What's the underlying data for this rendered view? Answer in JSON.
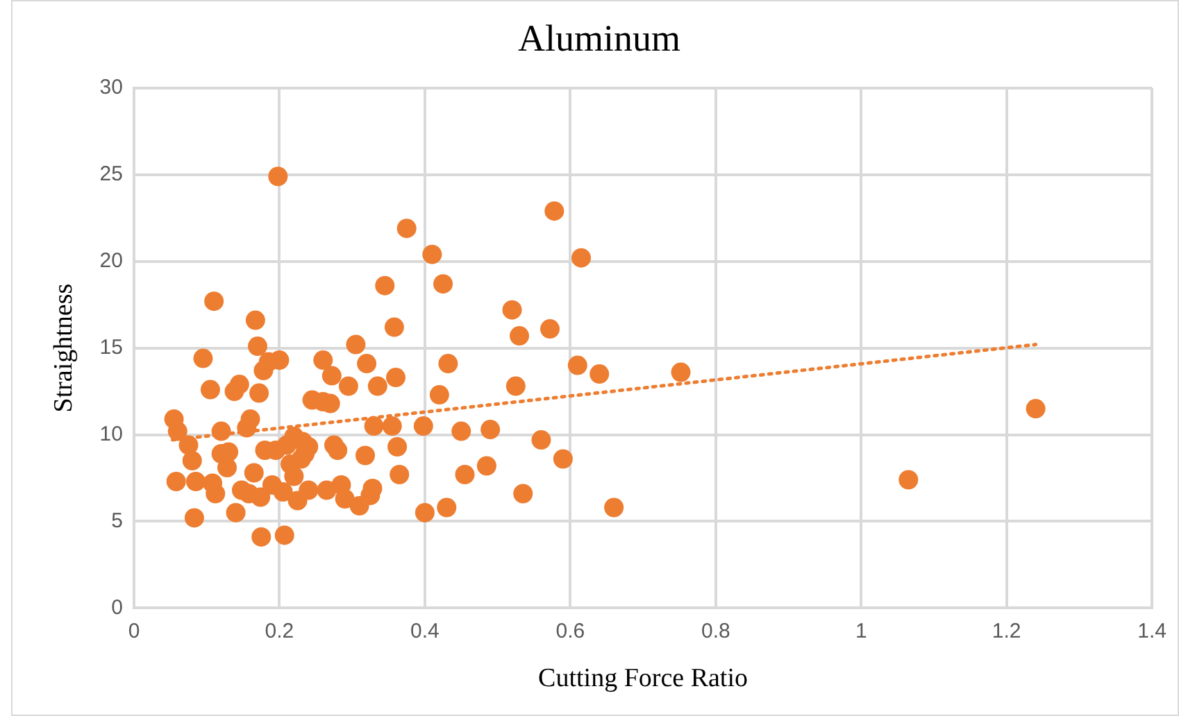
{
  "chart_data": {
    "type": "scatter",
    "title": "Aluminum",
    "xlabel": "Cutting Force Ratio",
    "ylabel": "Straightness",
    "xlim": [
      0,
      1.4
    ],
    "xticks": [
      0,
      0.2,
      0.4,
      0.6,
      0.8,
      1,
      1.2,
      1.4
    ],
    "ylim": [
      0,
      30
    ],
    "yticks": [
      0,
      5,
      10,
      15,
      20,
      25,
      30
    ],
    "grid": true,
    "marker": "circle",
    "series": [
      {
        "color": "#ed7d31",
        "x": [
          0.055,
          0.06,
          0.058,
          0.075,
          0.08,
          0.085,
          0.083,
          0.095,
          0.105,
          0.108,
          0.11,
          0.112,
          0.12,
          0.12,
          0.128,
          0.13,
          0.138,
          0.14,
          0.145,
          0.148,
          0.155,
          0.158,
          0.16,
          0.165,
          0.167,
          0.17,
          0.172,
          0.174,
          0.175,
          0.178,
          0.18,
          0.185,
          0.19,
          0.195,
          0.198,
          0.2,
          0.205,
          0.207,
          0.21,
          0.215,
          0.22,
          0.22,
          0.225,
          0.23,
          0.232,
          0.235,
          0.24,
          0.24,
          0.245,
          0.26,
          0.26,
          0.265,
          0.27,
          0.272,
          0.275,
          0.28,
          0.285,
          0.29,
          0.295,
          0.305,
          0.31,
          0.318,
          0.32,
          0.325,
          0.328,
          0.33,
          0.335,
          0.345,
          0.355,
          0.358,
          0.36,
          0.362,
          0.365,
          0.375,
          0.398,
          0.4,
          0.41,
          0.42,
          0.425,
          0.43,
          0.432,
          0.45,
          0.455,
          0.485,
          0.49,
          0.52,
          0.525,
          0.53,
          0.535,
          0.56,
          0.572,
          0.578,
          0.59,
          0.61,
          0.615,
          0.64,
          0.66,
          0.752,
          1.065,
          1.24
        ],
        "values": [
          10.9,
          10.2,
          7.3,
          9.4,
          8.5,
          7.3,
          5.2,
          14.4,
          12.6,
          7.2,
          17.7,
          6.6,
          10.2,
          8.9,
          8.1,
          9.0,
          12.5,
          5.5,
          12.9,
          6.8,
          10.4,
          6.6,
          10.9,
          7.8,
          16.6,
          15.1,
          12.4,
          6.4,
          4.1,
          13.7,
          9.1,
          14.2,
          7.1,
          9.1,
          24.9,
          14.3,
          6.7,
          4.2,
          9.4,
          8.3,
          9.9,
          7.6,
          6.2,
          8.6,
          9.6,
          8.9,
          9.3,
          6.8,
          12.0,
          14.3,
          11.9,
          6.8,
          11.8,
          13.4,
          9.4,
          9.1,
          7.1,
          6.3,
          12.8,
          15.2,
          5.9,
          8.8,
          14.1,
          6.5,
          6.9,
          10.5,
          12.8,
          18.6,
          10.5,
          16.2,
          13.3,
          9.3,
          7.7,
          21.9,
          10.5,
          5.5,
          20.4,
          12.3,
          18.7,
          5.8,
          14.1,
          10.2,
          7.7,
          8.2,
          10.3,
          17.2,
          12.8,
          15.7,
          6.6,
          9.7,
          16.1,
          22.9,
          8.6,
          14.0,
          20.2,
          13.5,
          5.8,
          13.6,
          7.4,
          11.5
        ]
      },
      {
        "type": "line",
        "color": "#ed7d31",
        "line_style": "dotted",
        "marker": "none",
        "x": [
          0.053,
          1.24
        ],
        "values": [
          9.7,
          15.2
        ]
      }
    ]
  }
}
